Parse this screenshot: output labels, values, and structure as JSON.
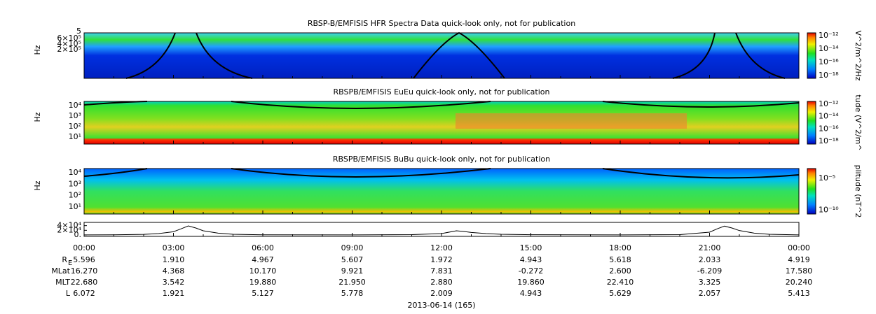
{
  "spectrograms": [
    {
      "title": "RBSP-B/EMFISIS  HFR Spectra Data quick-look only, not for publication",
      "ylabel": "Hz",
      "yticks": [
        "5",
        "6×10⁵",
        "4×10⁵",
        "2×10⁵"
      ],
      "colorbar_label": "V^2/m^2/Hz",
      "colorbar_ticks": [
        "10⁻¹²",
        "10⁻¹⁴",
        "10⁻¹⁶",
        "10⁻¹⁸"
      ]
    },
    {
      "title": "RBSPB/EMFISIS  EuEu quick-look only, not for publication",
      "ylabel": "Hz",
      "yticks": [
        "10⁴",
        "10³",
        "10²",
        "10¹"
      ],
      "colorbar_label": "tude (V^2/m^",
      "colorbar_ticks": [
        "10⁻¹²",
        "10⁻¹⁴",
        "10⁻¹⁶",
        "10⁻¹⁸"
      ]
    },
    {
      "title": "RBSPB/EMFISIS  BuBu quick-look only, not for publication",
      "ylabel": "Hz",
      "yticks": [
        "10⁴",
        "10³",
        "10²",
        "10¹"
      ],
      "colorbar_label": "plitude (nT^2",
      "colorbar_ticks": [
        "10⁻⁵",
        "10⁻¹⁰"
      ]
    }
  ],
  "chart_data": {
    "type": "line",
    "x": [
      0,
      1,
      2,
      2.5,
      3,
      3.25,
      3.5,
      3.75,
      4,
      4.5,
      5,
      6,
      9,
      11,
      12,
      12.5,
      12.75,
      13,
      13.5,
      14,
      15,
      18,
      20,
      21,
      21.25,
      21.5,
      21.75,
      22,
      22.5,
      23,
      24
    ],
    "values": [
      300,
      800,
      2500,
      6000,
      14000,
      26000,
      39000,
      30000,
      18000,
      8000,
      3000,
      800,
      400,
      1500,
      6000,
      18000,
      15000,
      11000,
      6000,
      3000,
      1000,
      300,
      1500,
      12000,
      26000,
      38000,
      30000,
      19000,
      8000,
      3000,
      300
    ],
    "xlim": [
      0,
      24
    ],
    "ylim": [
      -6000,
      54000
    ],
    "yticks": [
      {
        "value": 40000,
        "label": "4×10⁴"
      },
      {
        "value": 20000,
        "label": "2×10⁴"
      },
      {
        "value": 0,
        "label": "0."
      }
    ],
    "color": "#000000"
  },
  "time_axis": {
    "ticks": [
      "00:00",
      "03:00",
      "06:00",
      "09:00",
      "12:00",
      "15:00",
      "18:00",
      "21:00",
      "00:00"
    ]
  },
  "ephemeris": [
    {
      "label": "R",
      "sub": "E",
      "values": [
        "5.596",
        "1.910",
        "4.967",
        "5.607",
        "1.972",
        "4.943",
        "5.618",
        "2.033",
        "4.919"
      ]
    },
    {
      "label": "MLat",
      "values": [
        "16.270",
        "4.368",
        "10.170",
        "9.921",
        "7.831",
        "-0.272",
        "2.600",
        "-6.209",
        "17.580"
      ]
    },
    {
      "label": "MLT",
      "values": [
        "22.680",
        "3.542",
        "19.880",
        "21.950",
        "2.880",
        "19.860",
        "22.410",
        "3.325",
        "20.240"
      ]
    },
    {
      "label": "L",
      "values": [
        "6.072",
        "1.921",
        "5.127",
        "5.778",
        "2.009",
        "4.943",
        "5.629",
        "2.057",
        "5.413"
      ]
    }
  ],
  "date": "2013-06-14 (165)"
}
